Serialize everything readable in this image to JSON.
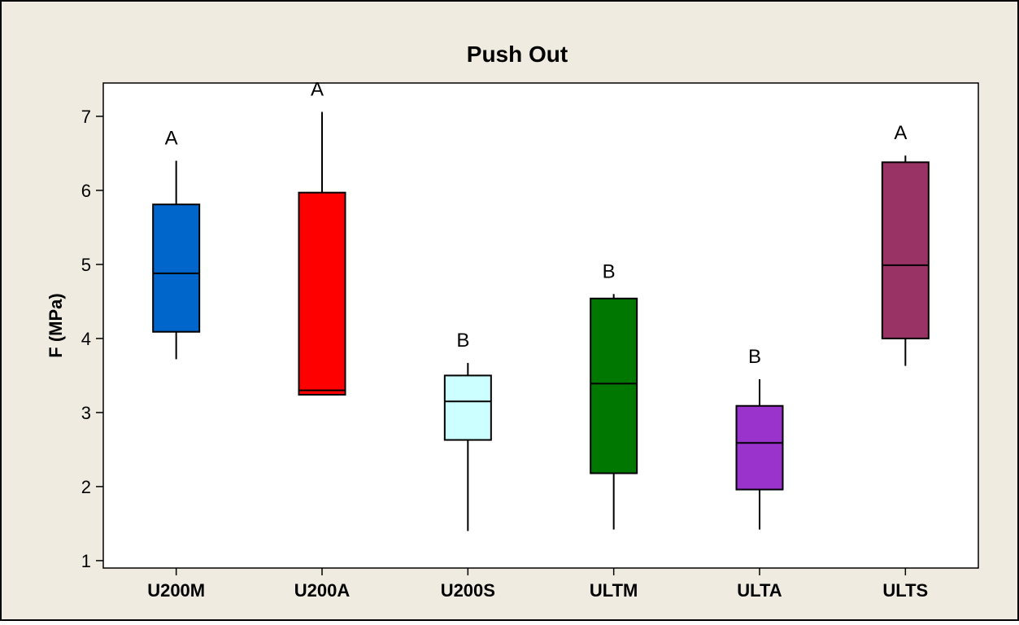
{
  "chart_data": {
    "type": "boxplot",
    "title": "Push Out",
    "xlabel": "",
    "ylabel": "F (MPa)",
    "ylim": [
      0.9,
      7.45
    ],
    "yticks": [
      1,
      2,
      3,
      4,
      5,
      6,
      7
    ],
    "grid": false,
    "legend": "none",
    "colors": {
      "figure_background": "#efebe1",
      "plot_background": "#ffffff",
      "axis": "#000000"
    },
    "categories": [
      "U200M",
      "U200A",
      "U200S",
      "ULTM",
      "ULTA",
      "ULTS"
    ],
    "boxes": [
      {
        "category": "U200M",
        "min": 3.72,
        "q1": 4.09,
        "median": 4.88,
        "q3": 5.81,
        "max": 6.4,
        "color": "#0066cc",
        "letter": "A"
      },
      {
        "category": "U200A",
        "min": 3.23,
        "q1": 3.24,
        "median": 3.3,
        "q3": 5.97,
        "max": 7.06,
        "color": "#ff0000",
        "letter": "A"
      },
      {
        "category": "U200S",
        "min": 1.4,
        "q1": 2.63,
        "median": 3.15,
        "q3": 3.5,
        "max": 3.67,
        "color": "#ccffff",
        "letter": "B"
      },
      {
        "category": "ULTM",
        "min": 1.42,
        "q1": 2.18,
        "median": 3.39,
        "q3": 4.54,
        "max": 4.6,
        "color": "#007700",
        "letter": "B"
      },
      {
        "category": "ULTA",
        "min": 1.42,
        "q1": 1.96,
        "median": 2.59,
        "q3": 3.09,
        "max": 3.45,
        "color": "#9933cc",
        "letter": "B"
      },
      {
        "category": "ULTS",
        "min": 3.63,
        "q1": 4.0,
        "median": 4.99,
        "q3": 6.38,
        "max": 6.47,
        "color": "#993366",
        "letter": "A"
      }
    ]
  }
}
